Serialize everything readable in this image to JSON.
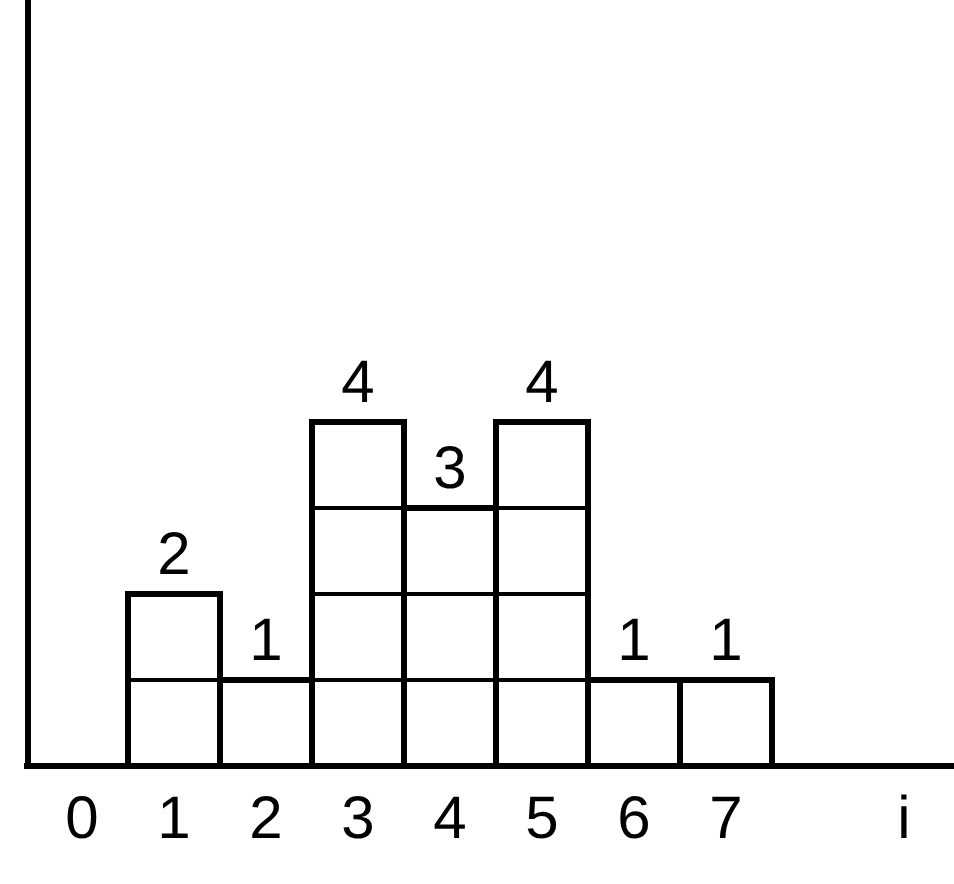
{
  "chart_data": {
    "type": "bar",
    "xlabel": "i",
    "categories": [
      "0",
      "1",
      "2",
      "3",
      "4",
      "5",
      "6",
      "7"
    ],
    "values": [
      0,
      2,
      1,
      4,
      3,
      4,
      1,
      1
    ],
    "value_labels": [
      null,
      "2",
      "1",
      "4",
      "3",
      "4",
      "1",
      "1"
    ],
    "color": "#ffffff"
  }
}
